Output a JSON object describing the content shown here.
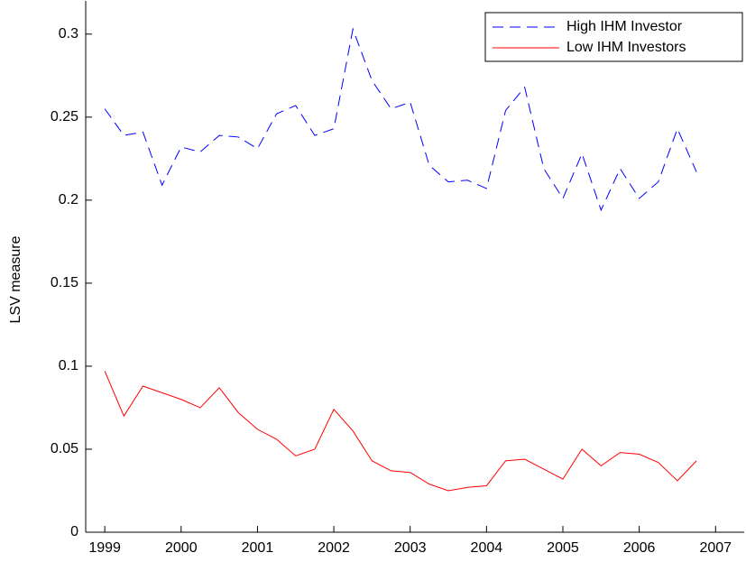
{
  "chart_data": {
    "type": "line",
    "ylabel": "LSV measure",
    "x": [
      1999,
      1999.25,
      1999.5,
      1999.75,
      2000,
      2000.25,
      2000.5,
      2000.75,
      2001,
      2001.25,
      2001.5,
      2001.75,
      2002,
      2002.25,
      2002.5,
      2002.75,
      2003,
      2003.25,
      2003.5,
      2003.75,
      2004,
      2004.25,
      2004.5,
      2004.75,
      2005,
      2005.25,
      2005.5,
      2005.75,
      2006,
      2006.25,
      2006.5,
      2006.75
    ],
    "series": [
      {
        "name": "High IHM Investor",
        "color": "#0000ff",
        "linestyle": "dashed",
        "values": [
          0.255,
          0.239,
          0.241,
          0.209,
          0.232,
          0.229,
          0.239,
          0.238,
          0.231,
          0.252,
          0.257,
          0.239,
          0.243,
          0.303,
          0.272,
          0.255,
          0.259,
          0.221,
          0.211,
          0.212,
          0.207,
          0.254,
          0.268,
          0.219,
          0.201,
          0.228,
          0.194,
          0.219,
          0.201,
          0.211,
          0.243,
          0.217
        ]
      },
      {
        "name": "Low IHM Investors",
        "color": "#ff0000",
        "linestyle": "solid",
        "values": [
          0.097,
          0.07,
          0.088,
          0.084,
          0.08,
          0.075,
          0.087,
          0.072,
          0.062,
          0.056,
          0.046,
          0.05,
          0.074,
          0.061,
          0.043,
          0.037,
          0.036,
          0.029,
          0.025,
          0.027,
          0.028,
          0.043,
          0.044,
          0.038,
          0.032,
          0.05,
          0.04,
          0.048,
          0.047,
          0.042,
          0.031,
          0.043
        ]
      }
    ],
    "xlim": [
      1998.75,
      2007.375
    ],
    "xticks": [
      1999,
      2000,
      2001,
      2002,
      2003,
      2004,
      2005,
      2006,
      2007
    ],
    "ylim": [
      0,
      0.32
    ],
    "yticks": [
      0,
      0.05,
      0.1,
      0.15,
      0.2,
      0.25,
      0.3
    ],
    "grid": false,
    "legend": "upper right"
  }
}
